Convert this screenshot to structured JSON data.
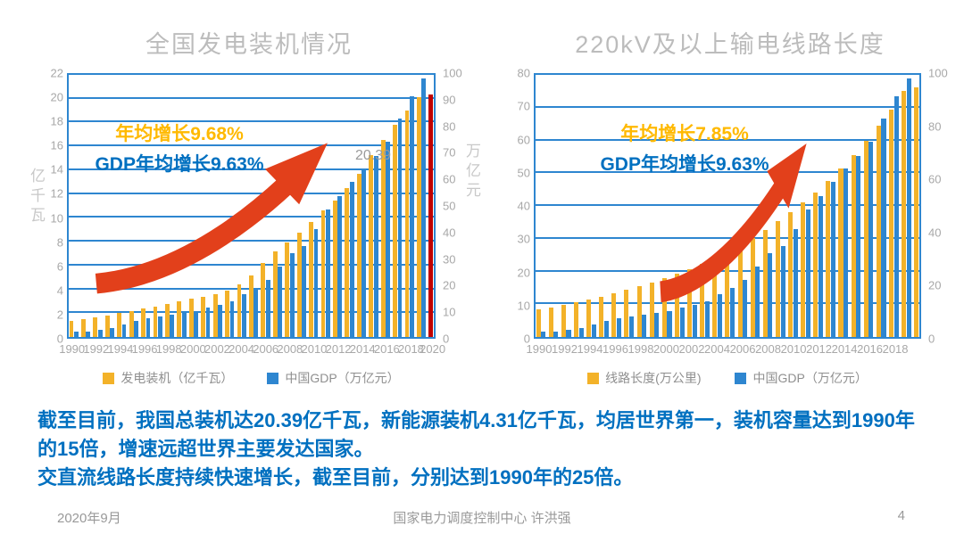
{
  "slide": {
    "body_text": {
      "para1": "截至目前，我国总装机达20.39亿千瓦，新能源装机4.31亿千瓦，均居世界第一，装机容量达到1990年的15倍，增速远超世界主要发达国家。",
      "para2": "交直流线路长度持续快速增长，截至目前，分别达到1990年的25倍。"
    },
    "footer": {
      "date": "2020年9月",
      "center": "国家电力调度控制中心 许洪强",
      "page": "4"
    }
  },
  "colors": {
    "bar_yellow": "#F3B229",
    "bar_blue": "#2E86D0",
    "bar_red": "#C00000",
    "grid_blue": "#2E86D0",
    "arrow_red": "#E2401B",
    "annotation_yellow": "#FFB900",
    "annotation_blue": "#0070C0",
    "body_text_blue": "#0070C0",
    "gray_text": "#9B9B9B"
  },
  "chart_data": [
    {
      "type": "bar",
      "title": "全国发电装机情况",
      "left_axis": {
        "label": "亿千瓦",
        "min": 0,
        "max": 22,
        "step": 2
      },
      "right_axis": {
        "label": "万亿元",
        "min": 0,
        "max": 100,
        "step": 10
      },
      "years_start": 1990,
      "years_end": 2019,
      "x_tick_labels": [
        "1990",
        "1992",
        "1994",
        "1996",
        "1998",
        "2000",
        "2002",
        "2004",
        "2006",
        "2008",
        "2010",
        "2012",
        "2014",
        "2016",
        "2018",
        "2020"
      ],
      "series": [
        {
          "name": "发电装机（亿千瓦）",
          "axis": "left",
          "color": "#F3B229",
          "values": [
            1.38,
            1.51,
            1.67,
            1.82,
            2.0,
            2.17,
            2.37,
            2.54,
            2.77,
            2.99,
            3.19,
            3.38,
            3.57,
            3.91,
            4.42,
            5.17,
            6.24,
            7.18,
            7.93,
            8.74,
            9.66,
            10.62,
            11.45,
            12.47,
            13.7,
            15.25,
            16.51,
            17.78,
            19.0,
            20.1
          ]
        },
        {
          "name": "中国GDP（万亿元）",
          "axis": "right",
          "color": "#2E86D0",
          "values": [
            1.89,
            2.19,
            2.69,
            3.53,
            4.81,
            6.13,
            7.18,
            7.97,
            8.52,
            9.06,
            10.03,
            11.09,
            12.17,
            13.74,
            16.18,
            18.73,
            21.94,
            27.01,
            31.92,
            34.85,
            41.21,
            48.79,
            53.86,
            59.3,
            64.36,
            68.89,
            74.64,
            83.2,
            91.93,
            98.65
          ]
        }
      ],
      "highlight_bar": {
        "year": "2020",
        "value": 20.39,
        "axis": "left",
        "color": "#C00000",
        "label": "20.39"
      },
      "annotations": [
        {
          "text": "年均增长9.68%",
          "color": "#FFB900"
        },
        {
          "text": "GDP年均增长9.63%",
          "color": "#0070C0"
        }
      ]
    },
    {
      "type": "bar",
      "title": "220kV及以上输电线路长度",
      "left_axis": {
        "label": "",
        "min": 0,
        "max": 80,
        "step": 10
      },
      "right_axis": {
        "label": "",
        "min": 0,
        "max": 100,
        "step": 20
      },
      "years_start": 1990,
      "years_end": 2019,
      "x_tick_labels": [
        "1990",
        "1992",
        "1994",
        "1996",
        "1998",
        "2000",
        "2002",
        "2004",
        "2006",
        "2008",
        "2010",
        "2012",
        "2014",
        "2016",
        "2018"
      ],
      "series": [
        {
          "name": "线路长度(万公里)",
          "axis": "left",
          "color": "#F3B229",
          "values": [
            8.5,
            9.1,
            9.8,
            10.6,
            11.4,
            12.3,
            13.3,
            14.3,
            15.4,
            16.6,
            17.9,
            19.3,
            20.8,
            22.4,
            24.2,
            26.1,
            28.1,
            30.3,
            32.7,
            35.3,
            38.0,
            41.0,
            44.2,
            47.7,
            51.4,
            55.5,
            59.8,
            64.5,
            69.5,
            75.0
          ]
        },
        {
          "name": "中国GDP（万亿元）",
          "axis": "right",
          "color": "#2E86D0",
          "values": [
            1.89,
            2.19,
            2.69,
            3.53,
            4.81,
            6.13,
            7.18,
            7.97,
            8.52,
            9.06,
            10.03,
            11.09,
            12.17,
            13.74,
            16.18,
            18.73,
            21.94,
            27.01,
            31.92,
            34.85,
            41.21,
            48.79,
            53.86,
            59.3,
            64.36,
            68.89,
            74.64,
            83.2,
            91.93,
            98.65
          ]
        }
      ],
      "highlight_bar": {
        "year": "2020",
        "value": 76.2,
        "axis": "left",
        "color": "#F3B229",
        "label": ""
      },
      "annotations": [
        {
          "text": "年均增长7.85%",
          "color": "#FFB900"
        },
        {
          "text": "GDP年均增长9.63%",
          "color": "#0070C0"
        }
      ]
    }
  ]
}
